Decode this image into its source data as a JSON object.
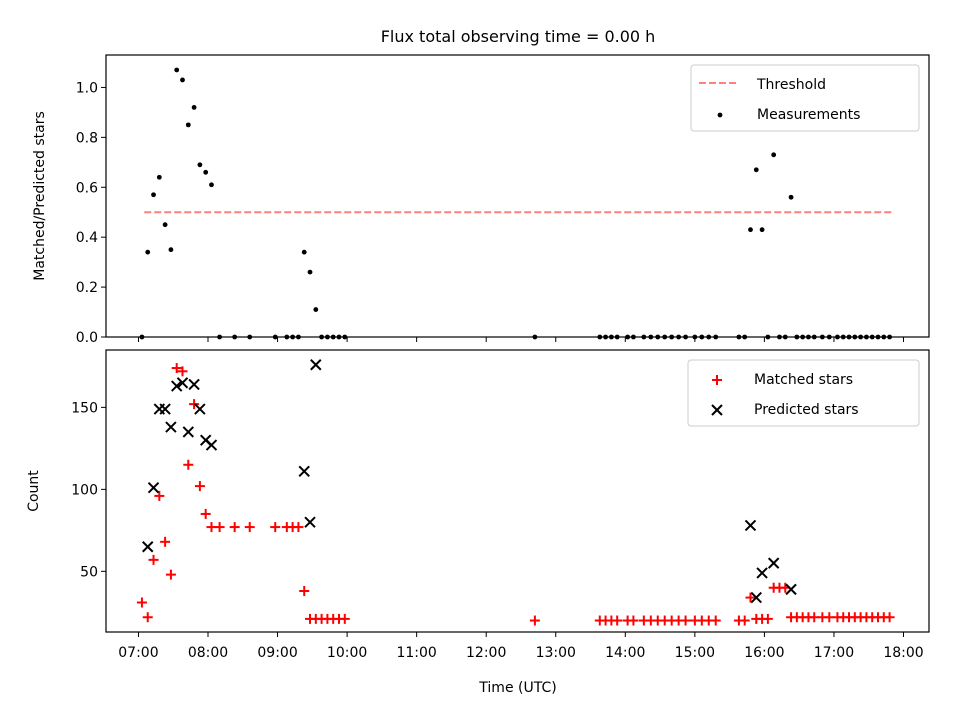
{
  "figure": {
    "title": "Flux total observing time = 0.00 h",
    "xlabel": "Time (UTC)"
  },
  "chart_data": [
    {
      "type": "scatter",
      "ylabel": "Matched/Predicted stars",
      "xlim": [
        "06:32",
        "18:22"
      ],
      "ylim": [
        0,
        1.13
      ],
      "y_ticks": [
        0.0,
        0.2,
        0.4,
        0.6,
        0.8,
        1.0
      ],
      "y_tick_labels": [
        "0.0",
        "0.2",
        "0.4",
        "0.6",
        "0.8",
        "1.0"
      ],
      "x_tick_labels": [
        "07:00",
        "08:00",
        "09:00",
        "10:00",
        "11:00",
        "12:00",
        "13:00",
        "14:00",
        "15:00",
        "16:00",
        "17:00",
        "18:00"
      ],
      "legend_position": "upper right",
      "threshold": {
        "name": "Threshold",
        "value": 0.5,
        "x_range": [
          "07:05",
          "17:50"
        ],
        "color": "#ff7f7f",
        "style": "dashed"
      },
      "series": [
        {
          "name": "Measurements",
          "color": "#000000",
          "marker": "dot",
          "x": [
            "07:03",
            "07:08",
            "07:13",
            "07:18",
            "07:23",
            "07:28",
            "07:33",
            "07:38",
            "07:43",
            "07:48",
            "07:53",
            "07:58",
            "08:03",
            "08:10",
            "08:23",
            "08:36",
            "08:58",
            "09:08",
            "09:13",
            "09:18",
            "09:23",
            "09:28",
            "09:33",
            "09:38",
            "09:43",
            "09:48",
            "09:53",
            "09:58",
            "12:42",
            "13:38",
            "13:43",
            "13:48",
            "13:53",
            "14:02",
            "14:07",
            "14:16",
            "14:22",
            "14:28",
            "14:34",
            "14:40",
            "14:46",
            "14:52",
            "15:00",
            "15:06",
            "15:12",
            "15:18",
            "15:38",
            "15:43",
            "15:48",
            "15:53",
            "15:58",
            "16:03",
            "16:08",
            "16:13",
            "16:18",
            "16:23",
            "16:28",
            "16:33",
            "16:38",
            "16:43",
            "16:50",
            "16:56",
            "17:03",
            "17:08",
            "17:13",
            "17:18",
            "17:23",
            "17:28",
            "17:33",
            "17:38",
            "17:43",
            "17:48"
          ],
          "y": [
            0.0,
            0.34,
            0.57,
            0.64,
            0.45,
            0.35,
            1.07,
            1.03,
            0.85,
            0.92,
            0.69,
            0.66,
            0.61,
            0.0,
            0.0,
            0.0,
            0.0,
            0.0,
            0.0,
            0.0,
            0.34,
            0.26,
            0.11,
            0.0,
            0.0,
            0.0,
            0.0,
            0.0,
            0.0,
            0.0,
            0.0,
            0.0,
            0.0,
            0.0,
            0.0,
            0.0,
            0.0,
            0.0,
            0.0,
            0.0,
            0.0,
            0.0,
            0.0,
            0.0,
            0.0,
            0.0,
            0.0,
            0.0,
            0.43,
            0.67,
            0.43,
            0.0,
            0.73,
            0.0,
            0.0,
            0.56,
            0.0,
            0.0,
            0.0,
            0.0,
            0.0,
            0.0,
            0.0,
            0.0,
            0.0,
            0.0,
            0.0,
            0.0,
            0.0,
            0.0,
            0.0,
            0.0
          ]
        }
      ]
    },
    {
      "type": "scatter",
      "ylabel": "Count",
      "xlim": [
        "06:32",
        "18:22"
      ],
      "ylim": [
        13,
        185
      ],
      "y_ticks": [
        50,
        100,
        150
      ],
      "y_tick_labels": [
        "50",
        "100",
        "150"
      ],
      "x_tick_labels": [
        "07:00",
        "08:00",
        "09:00",
        "10:00",
        "11:00",
        "12:00",
        "13:00",
        "14:00",
        "15:00",
        "16:00",
        "17:00",
        "18:00"
      ],
      "legend_position": "upper right",
      "series": [
        {
          "name": "Matched stars",
          "color": "#ff0000",
          "marker": "plus",
          "x": [
            "07:03",
            "07:08",
            "07:13",
            "07:18",
            "07:23",
            "07:28",
            "07:33",
            "07:38",
            "07:43",
            "07:48",
            "07:53",
            "07:58",
            "08:03",
            "08:10",
            "08:23",
            "08:36",
            "08:58",
            "09:08",
            "09:13",
            "09:18",
            "09:23",
            "09:28",
            "09:33",
            "09:38",
            "09:43",
            "09:48",
            "09:53",
            "09:58",
            "12:42",
            "13:38",
            "13:43",
            "13:48",
            "13:53",
            "14:02",
            "14:07",
            "14:16",
            "14:22",
            "14:28",
            "14:34",
            "14:40",
            "14:46",
            "14:52",
            "15:00",
            "15:06",
            "15:12",
            "15:18",
            "15:38",
            "15:43",
            "15:48",
            "15:53",
            "15:58",
            "16:03",
            "16:08",
            "16:13",
            "16:18",
            "16:23",
            "16:28",
            "16:33",
            "16:38",
            "16:43",
            "16:50",
            "16:56",
            "17:03",
            "17:08",
            "17:13",
            "17:18",
            "17:23",
            "17:28",
            "17:33",
            "17:38",
            "17:43",
            "17:48"
          ],
          "y": [
            31,
            22,
            57,
            96,
            68,
            48,
            174,
            172,
            115,
            152,
            102,
            85,
            77,
            77,
            77,
            77,
            77,
            77,
            77,
            77,
            38,
            21,
            21,
            21,
            21,
            21,
            21,
            21,
            20,
            20,
            20,
            20,
            20,
            20,
            20,
            20,
            20,
            20,
            20,
            20,
            20,
            20,
            20,
            20,
            20,
            20,
            20,
            20,
            34,
            21,
            21,
            21,
            40,
            40,
            40,
            22,
            22,
            22,
            22,
            22,
            22,
            22,
            22,
            22,
            22,
            22,
            22,
            22,
            22,
            22,
            22,
            22
          ]
        },
        {
          "name": "Predicted stars",
          "color": "#000000",
          "marker": "x",
          "x": [
            "07:08",
            "07:13",
            "07:18",
            "07:23",
            "07:28",
            "07:33",
            "07:38",
            "07:43",
            "07:48",
            "07:53",
            "07:58",
            "08:03",
            "09:23",
            "09:28",
            "09:33",
            "15:48",
            "15:53",
            "15:58",
            "16:08",
            "16:23"
          ],
          "y": [
            65,
            101,
            149,
            149,
            138,
            163,
            165,
            135,
            164,
            149,
            130,
            127,
            111,
            80,
            176,
            78,
            34,
            49,
            55,
            39
          ]
        }
      ]
    }
  ]
}
